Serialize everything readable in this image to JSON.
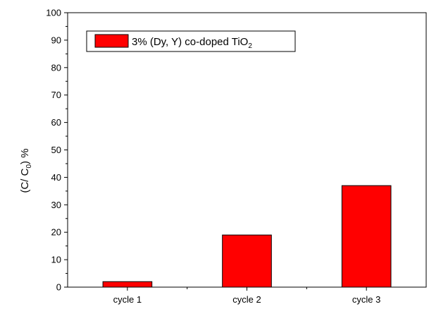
{
  "chart_data": {
    "type": "bar",
    "categories": [
      "cycle 1",
      "cycle 2",
      "cycle 3"
    ],
    "series": [
      {
        "name": "3% (Dy, Y) co-doped TiO2",
        "values": [
          2,
          19,
          37
        ],
        "color": "#ff0000"
      }
    ],
    "ylabel": "(C/ C0) %",
    "xlabel": "",
    "ylim": [
      0,
      100
    ],
    "yticks": [
      0,
      10,
      20,
      30,
      40,
      50,
      60,
      70,
      80,
      90,
      100
    ],
    "legend_position": "top-left",
    "grid": false
  }
}
